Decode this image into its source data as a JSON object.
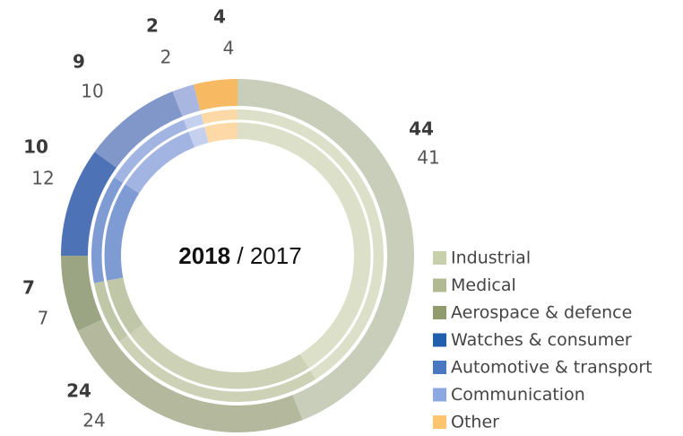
{
  "chart_data": {
    "type": "nested-donut",
    "center_separator": "/",
    "categories": [
      "Industrial",
      "Medical",
      "Aerospace & defence",
      "Watches & consumer",
      "Automotive & transport",
      "Communication",
      "Other"
    ],
    "colors": [
      "#c8cfab",
      "#b1b993",
      "#909c6e",
      "#1f5fae",
      "#4a77c2",
      "#8ba8e0",
      "#ffc470"
    ],
    "series": [
      {
        "name": "2018",
        "values": [
          44,
          24,
          7,
          10,
          9,
          2,
          4
        ],
        "colors": [
          "#c9cebb",
          "#b4b99e",
          "#9ba483",
          "#4e72b6",
          "#8197c9",
          "#a9b7e0",
          "#f8b963"
        ]
      },
      {
        "name": "2017",
        "values": [
          41,
          24,
          7,
          12,
          10,
          2,
          4
        ],
        "colors": [
          "#dde0c9",
          "#cdd2b6",
          "#c0c7a8",
          "#7f9bd4",
          "#a2b4e1",
          "#c5d0ee",
          "#fdd9a8"
        ]
      }
    ]
  }
}
